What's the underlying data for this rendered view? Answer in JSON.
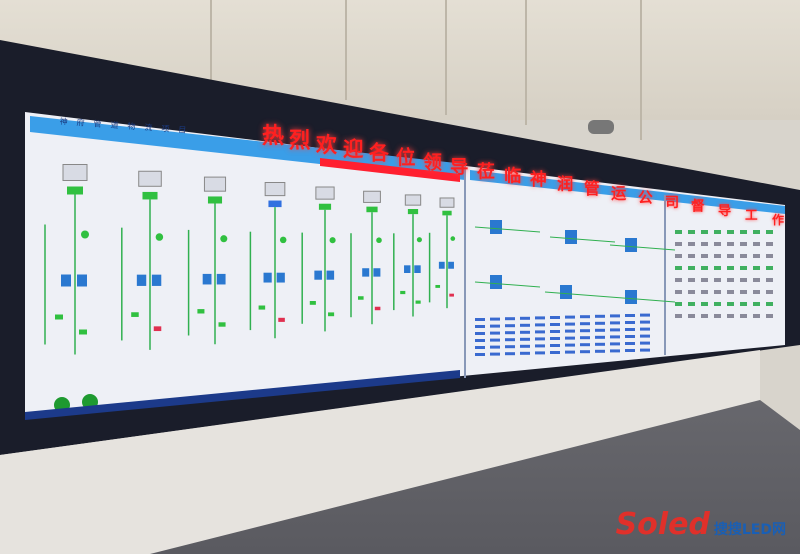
{
  "banner": {
    "text": "热烈欢迎各位领导莅临神润管运公司督导工作",
    "color": "#ff2020"
  },
  "screen": {
    "header_title": "神府管道物流项目",
    "header_color": "#3a9ee8",
    "alarm_color": "#ff2030"
  },
  "watermark": {
    "brand": "Soled",
    "site": "搜搜LED网"
  }
}
